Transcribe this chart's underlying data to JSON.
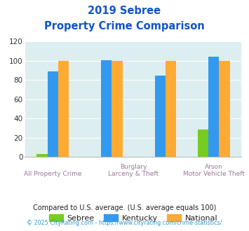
{
  "title_line1": "2019 Sebree",
  "title_line2": "Property Crime Comparison",
  "cat_labels_line1": [
    "",
    "Burglary",
    "",
    "Arson"
  ],
  "cat_labels_line2": [
    "All Property Crime",
    "Larceny & Theft",
    "",
    "Motor Vehicle Theft"
  ],
  "sebree_values": [
    3,
    0,
    0,
    29
  ],
  "kentucky_values": [
    89,
    101,
    85,
    104
  ],
  "national_values": [
    100,
    100,
    100,
    100
  ],
  "sebree_color": "#77cc22",
  "kentucky_color": "#3399ee",
  "national_color": "#ffaa33",
  "title_color": "#1155cc",
  "axis_label_color": "#997799",
  "plot_bg_color": "#ddeef0",
  "ylim": [
    0,
    120
  ],
  "yticks": [
    0,
    20,
    40,
    60,
    80,
    100,
    120
  ],
  "legend_labels": [
    "Sebree",
    "Kentucky",
    "National"
  ],
  "footer_text": "Compared to U.S. average. (U.S. average equals 100)",
  "copyright_text": "© 2025 CityRating.com - https://www.cityrating.com/crime-statistics/",
  "footer_color": "#222222",
  "copyright_color": "#3399cc"
}
